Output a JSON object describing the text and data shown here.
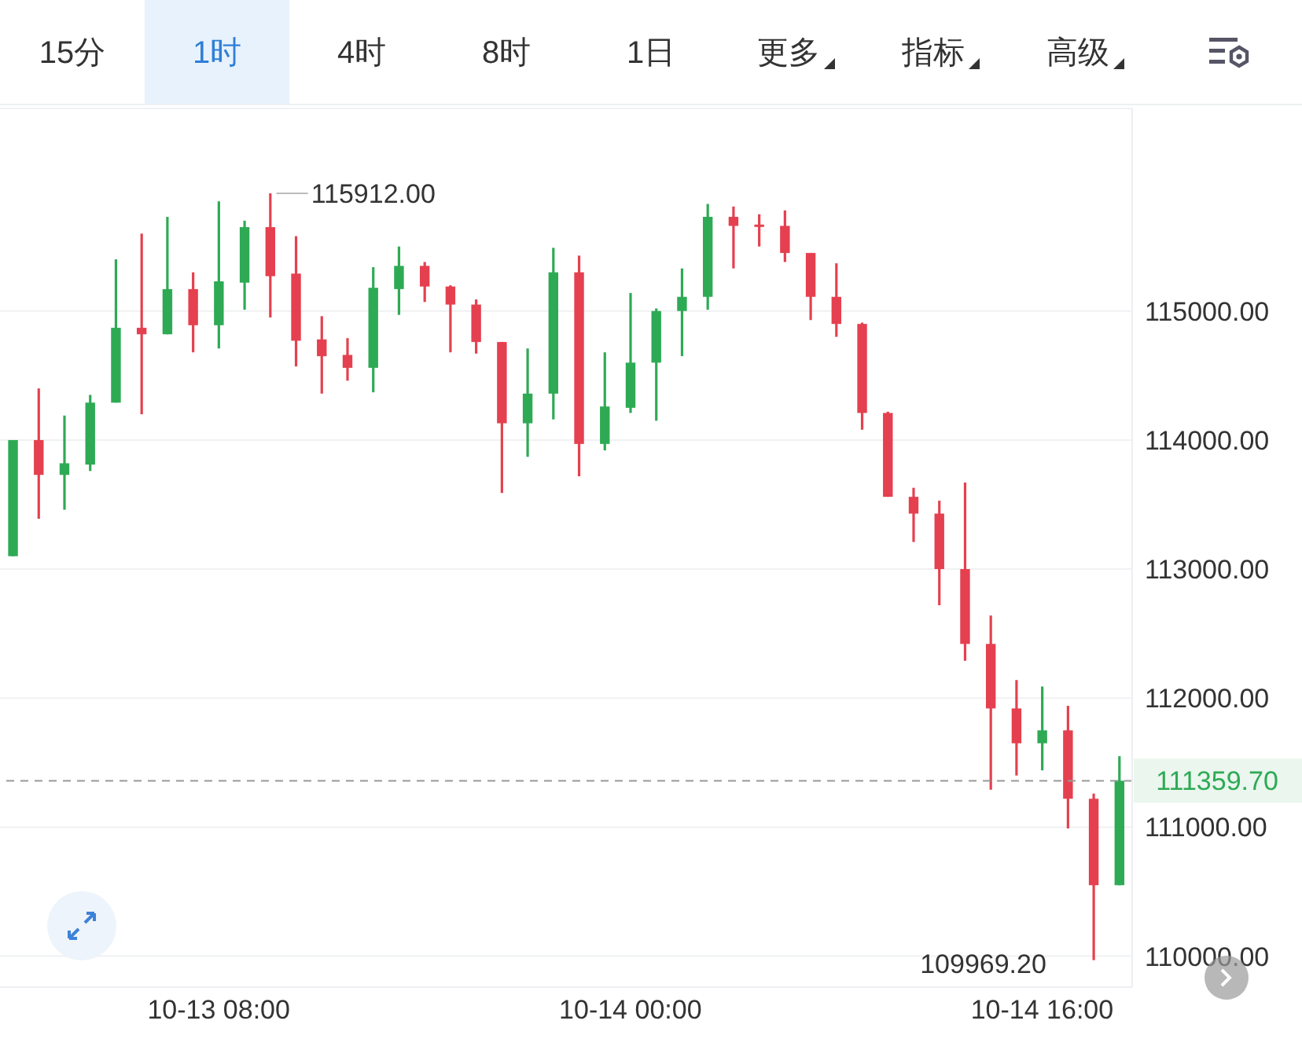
{
  "chart_data": {
    "type": "candlestick",
    "categories": [
      null,
      null,
      null,
      null,
      null,
      null,
      null,
      null,
      "10-13 08:00",
      null,
      null,
      null,
      null,
      null,
      null,
      null,
      null,
      null,
      null,
      null,
      null,
      null,
      null,
      null,
      "10-14 00:00",
      null,
      null,
      null,
      null,
      null,
      null,
      null,
      null,
      null,
      null,
      null,
      null,
      null,
      null,
      null,
      "10-14 16:00",
      null,
      null,
      null
    ],
    "ohlc": [
      [
        113100,
        114000,
        113100,
        114000
      ],
      [
        114000,
        114400,
        113390,
        113730
      ],
      [
        113730,
        114190,
        113460,
        113820
      ],
      [
        113810,
        114350,
        113760,
        114290
      ],
      [
        114290,
        115400,
        114290,
        114870
      ],
      [
        114870,
        115600,
        114200,
        114820
      ],
      [
        114820,
        115730,
        114820,
        115170
      ],
      [
        115170,
        115300,
        114680,
        114890
      ],
      [
        114890,
        115850,
        114710,
        115230
      ],
      [
        115220,
        115700,
        115010,
        115650
      ],
      [
        115650,
        115912,
        114950,
        115270
      ],
      [
        115290,
        115580,
        114570,
        114770
      ],
      [
        114780,
        114960,
        114360,
        114650
      ],
      [
        114660,
        114790,
        114460,
        114560
      ],
      [
        114560,
        115340,
        114370,
        115180
      ],
      [
        115170,
        115500,
        114970,
        115350
      ],
      [
        115350,
        115380,
        115070,
        115190
      ],
      [
        115190,
        115200,
        114680,
        115050
      ],
      [
        115050,
        115090,
        114670,
        114760
      ],
      [
        114760,
        114760,
        113590,
        114130
      ],
      [
        114130,
        114710,
        113870,
        114360
      ],
      [
        114360,
        115490,
        114160,
        115300
      ],
      [
        115300,
        115430,
        113720,
        113970
      ],
      [
        113970,
        114680,
        113920,
        114260
      ],
      [
        114250,
        115140,
        114210,
        114600
      ],
      [
        114600,
        115020,
        114150,
        115000
      ],
      [
        115000,
        115330,
        114650,
        115110
      ],
      [
        115110,
        115830,
        115010,
        115730
      ],
      [
        115730,
        115810,
        115330,
        115660
      ],
      [
        115670,
        115750,
        115500,
        115660
      ],
      [
        115660,
        115780,
        115380,
        115450
      ],
      [
        115450,
        115450,
        114930,
        115110
      ],
      [
        115110,
        115370,
        114800,
        114900
      ],
      [
        114900,
        114910,
        114080,
        114210
      ],
      [
        114210,
        114220,
        113560,
        113560
      ],
      [
        113560,
        113630,
        113210,
        113430
      ],
      [
        113430,
        113530,
        112720,
        113000
      ],
      [
        113000,
        113670,
        112290,
        112420
      ],
      [
        112420,
        112640,
        111290,
        111920
      ],
      [
        111920,
        112140,
        111400,
        111650
      ],
      [
        111650,
        112090,
        111440,
        111750
      ],
      [
        111750,
        111940,
        110990,
        111220
      ],
      [
        111220,
        111260,
        109969.2,
        110550
      ],
      [
        110550,
        111550,
        110550,
        111359.7
      ]
    ],
    "colors": [
      "#2eaa55",
      "#e5404f",
      "#2eaa55",
      "#2eaa55",
      "#2eaa55",
      "#e5404f",
      "#2eaa55",
      "#e5404f",
      "#2eaa55",
      "#2eaa55",
      "#e5404f",
      "#e5404f",
      "#e5404f",
      "#e5404f",
      "#2eaa55",
      "#2eaa55",
      "#e5404f",
      "#e5404f",
      "#e5404f",
      "#e5404f",
      "#2eaa55",
      "#2eaa55",
      "#e5404f",
      "#2eaa55",
      "#2eaa55",
      "#2eaa55",
      "#2eaa55",
      "#2eaa55",
      "#e5404f",
      "#e5404f",
      "#e5404f",
      "#e5404f",
      "#e5404f",
      "#e5404f",
      "#e5404f",
      "#e5404f",
      "#e5404f",
      "#e5404f",
      "#e5404f",
      "#e5404f",
      "#2eaa55",
      "#e5404f",
      "#e5404f",
      "#2eaa55"
    ],
    "ylim": [
      109760,
      116570
    ],
    "yticks": [
      {
        "value": 110000,
        "label": "110000.00"
      },
      {
        "value": 111000,
        "label": "111000.00"
      },
      {
        "value": 112000,
        "label": "112000.00"
      },
      {
        "value": 113000,
        "label": "113000.00"
      },
      {
        "value": 114000,
        "label": "114000.00"
      },
      {
        "value": 115000,
        "label": "115000.00"
      }
    ],
    "grid": "y",
    "ref_lines": [
      {
        "axis": "y",
        "value": 111359.7,
        "label": "111359.70",
        "color": "#999999",
        "line_style": "dashed"
      }
    ],
    "annotations": [
      "15分",
      "1时",
      "4时",
      "8时",
      "1日",
      "更多",
      "指标",
      "高级",
      "115912.00",
      "109969.20"
    ]
  }
}
